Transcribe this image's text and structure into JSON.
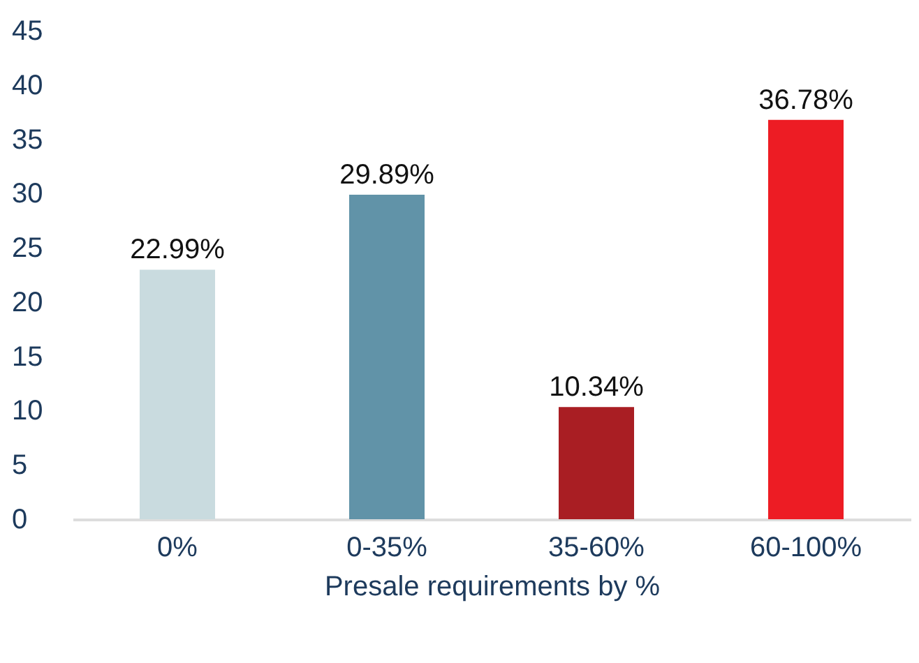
{
  "chart_data": {
    "type": "bar",
    "xlabel": "Presale requirements by %",
    "categories": [
      "0%",
      "0-35%",
      "35-60%",
      "60-100%"
    ],
    "values": [
      22.99,
      29.89,
      10.34,
      36.78
    ],
    "colors": [
      "#c9dbdf",
      "#6193a8",
      "#a91e23",
      "#ed1c24"
    ],
    "value_labels": [
      "22.99%",
      "29.89%",
      "10.34%",
      "36.78%"
    ],
    "ylim": [
      0,
      45
    ],
    "yticks": [
      0,
      5,
      10,
      15,
      20,
      25,
      30,
      35,
      40,
      45
    ],
    "grid": false
  }
}
